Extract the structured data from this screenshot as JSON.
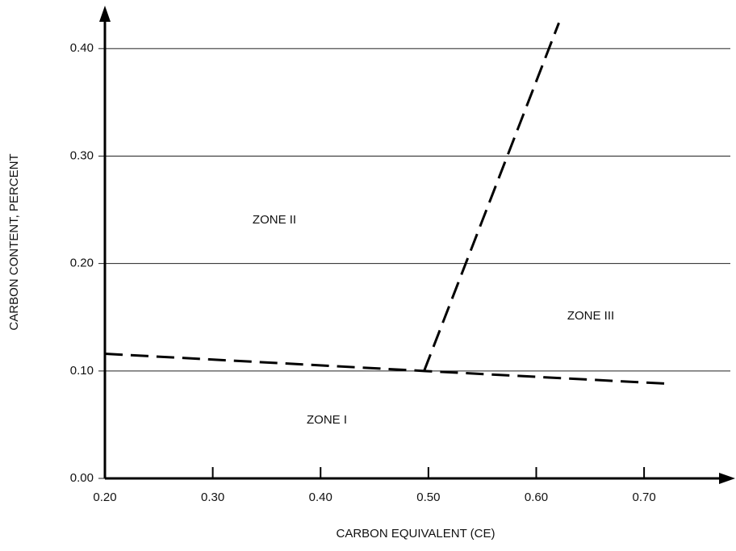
{
  "chart_data": {
    "type": "line",
    "xlabel": "CARBON EQUIVALENT (CE)",
    "ylabel": "CARBON CONTENT, PERCENT",
    "xlim": [
      0.2,
      0.78
    ],
    "ylim": [
      0,
      0.44
    ],
    "xticks": [
      {
        "value": 0.2,
        "label": "0.20"
      },
      {
        "value": 0.3,
        "label": "0.30"
      },
      {
        "value": 0.4,
        "label": "0.40"
      },
      {
        "value": 0.5,
        "label": "0.50"
      },
      {
        "value": 0.6,
        "label": "0.60"
      },
      {
        "value": 0.7,
        "label": "0.70"
      }
    ],
    "yticks": [
      {
        "value": 0,
        "label": "0.00"
      },
      {
        "value": 0.1,
        "label": "0.10"
      },
      {
        "value": 0.2,
        "label": "0.20"
      },
      {
        "value": 0.3,
        "label": "0.30"
      },
      {
        "value": 0.4,
        "label": "0.40"
      }
    ],
    "grid": true,
    "series": [
      {
        "color": "#000000",
        "x": [
          0.2,
          0.496,
          0.724
        ],
        "values": [
          0.116,
          0.1,
          0.088
        ]
      },
      {
        "color": "#000000",
        "x": [
          0.496,
          0.621
        ],
        "values": [
          0.1,
          0.424
        ]
      }
    ],
    "annotations": [
      "ZONE I",
      "ZONE II",
      "ZONE III"
    ]
  }
}
